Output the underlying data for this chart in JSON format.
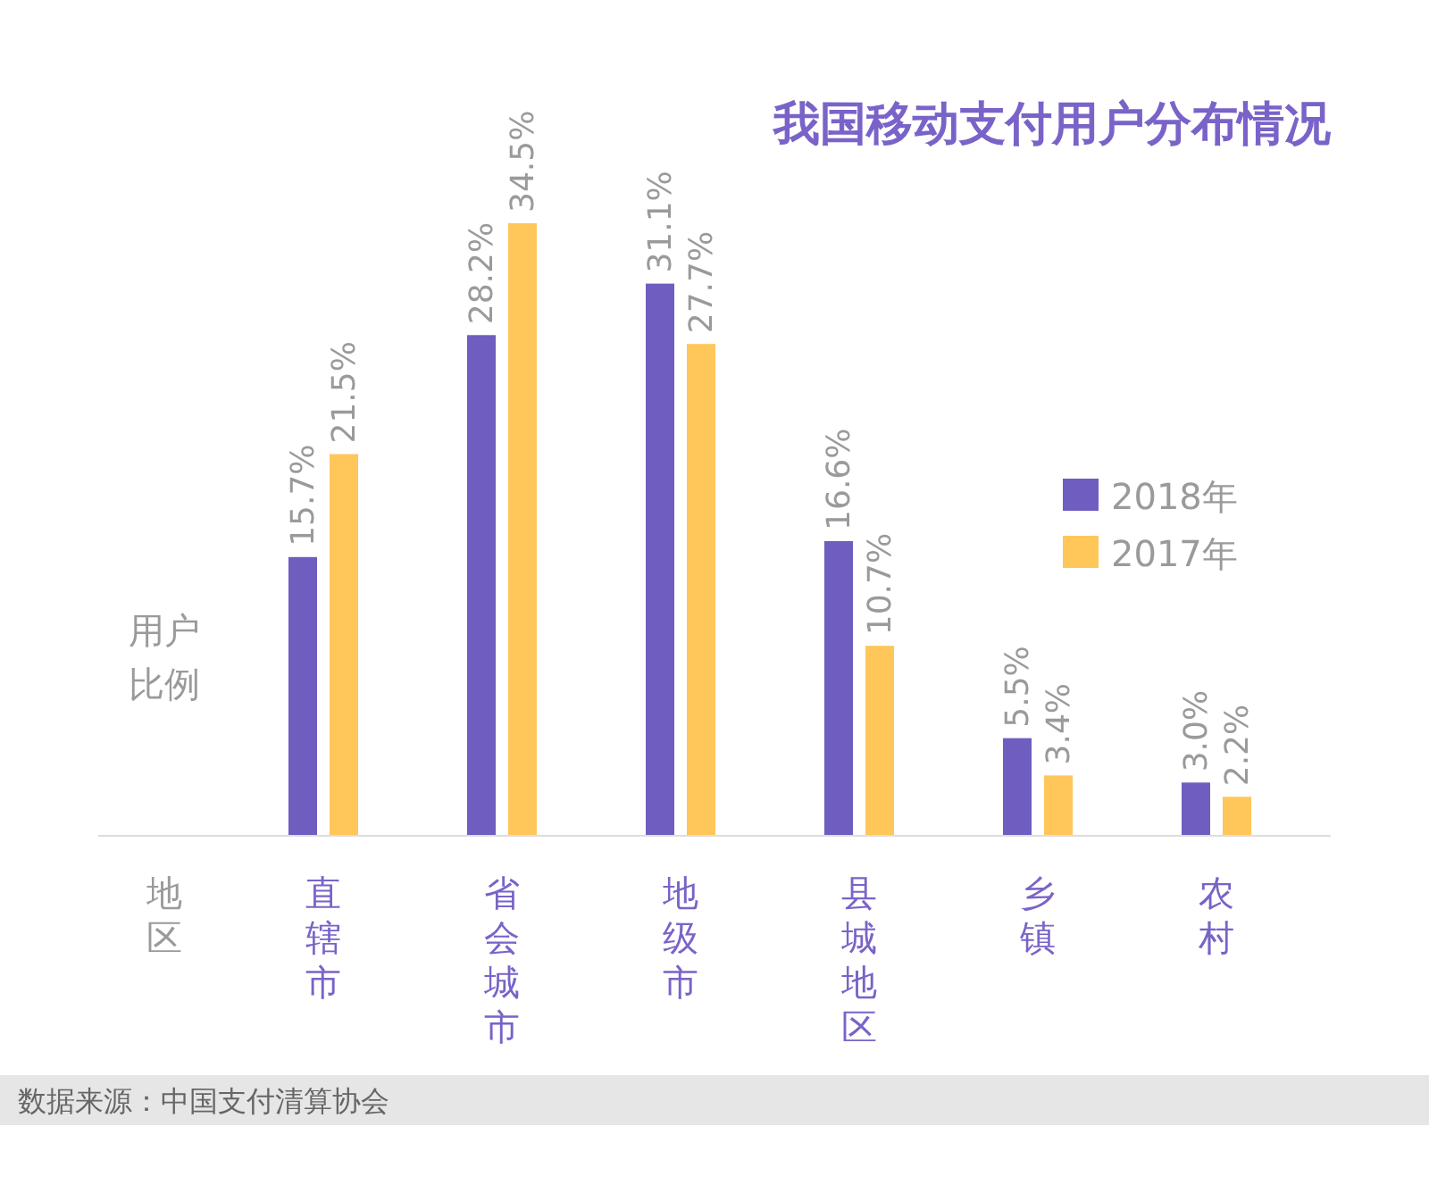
{
  "chart_data": {
    "type": "bar",
    "title": "我国移动支付用户分布情况",
    "xlabel": "地区",
    "ylabel": "用户比例",
    "categories": [
      "直辖市",
      "省会城市",
      "地级市",
      "县城地区",
      "乡镇",
      "农村"
    ],
    "series": [
      {
        "name": "2018年",
        "color": "#6f5dbf",
        "values": [
          15.7,
          28.2,
          31.1,
          16.6,
          5.5,
          3.0
        ],
        "value_labels": [
          "15.7%",
          "28.2%",
          "31.1%",
          "16.6%",
          "5.5%",
          "3.0%"
        ]
      },
      {
        "name": "2017年",
        "color": "#ffc65a",
        "values": [
          21.5,
          34.5,
          27.7,
          10.7,
          3.4,
          2.2
        ],
        "value_labels": [
          "21.5%",
          "34.5%",
          "27.7%",
          "10.7%",
          "3.4%",
          "2.2%"
        ]
      }
    ],
    "legend": "right",
    "tick_labels": "x",
    "annotations": [
      "数据来源：中国支付清算协会"
    ]
  }
}
